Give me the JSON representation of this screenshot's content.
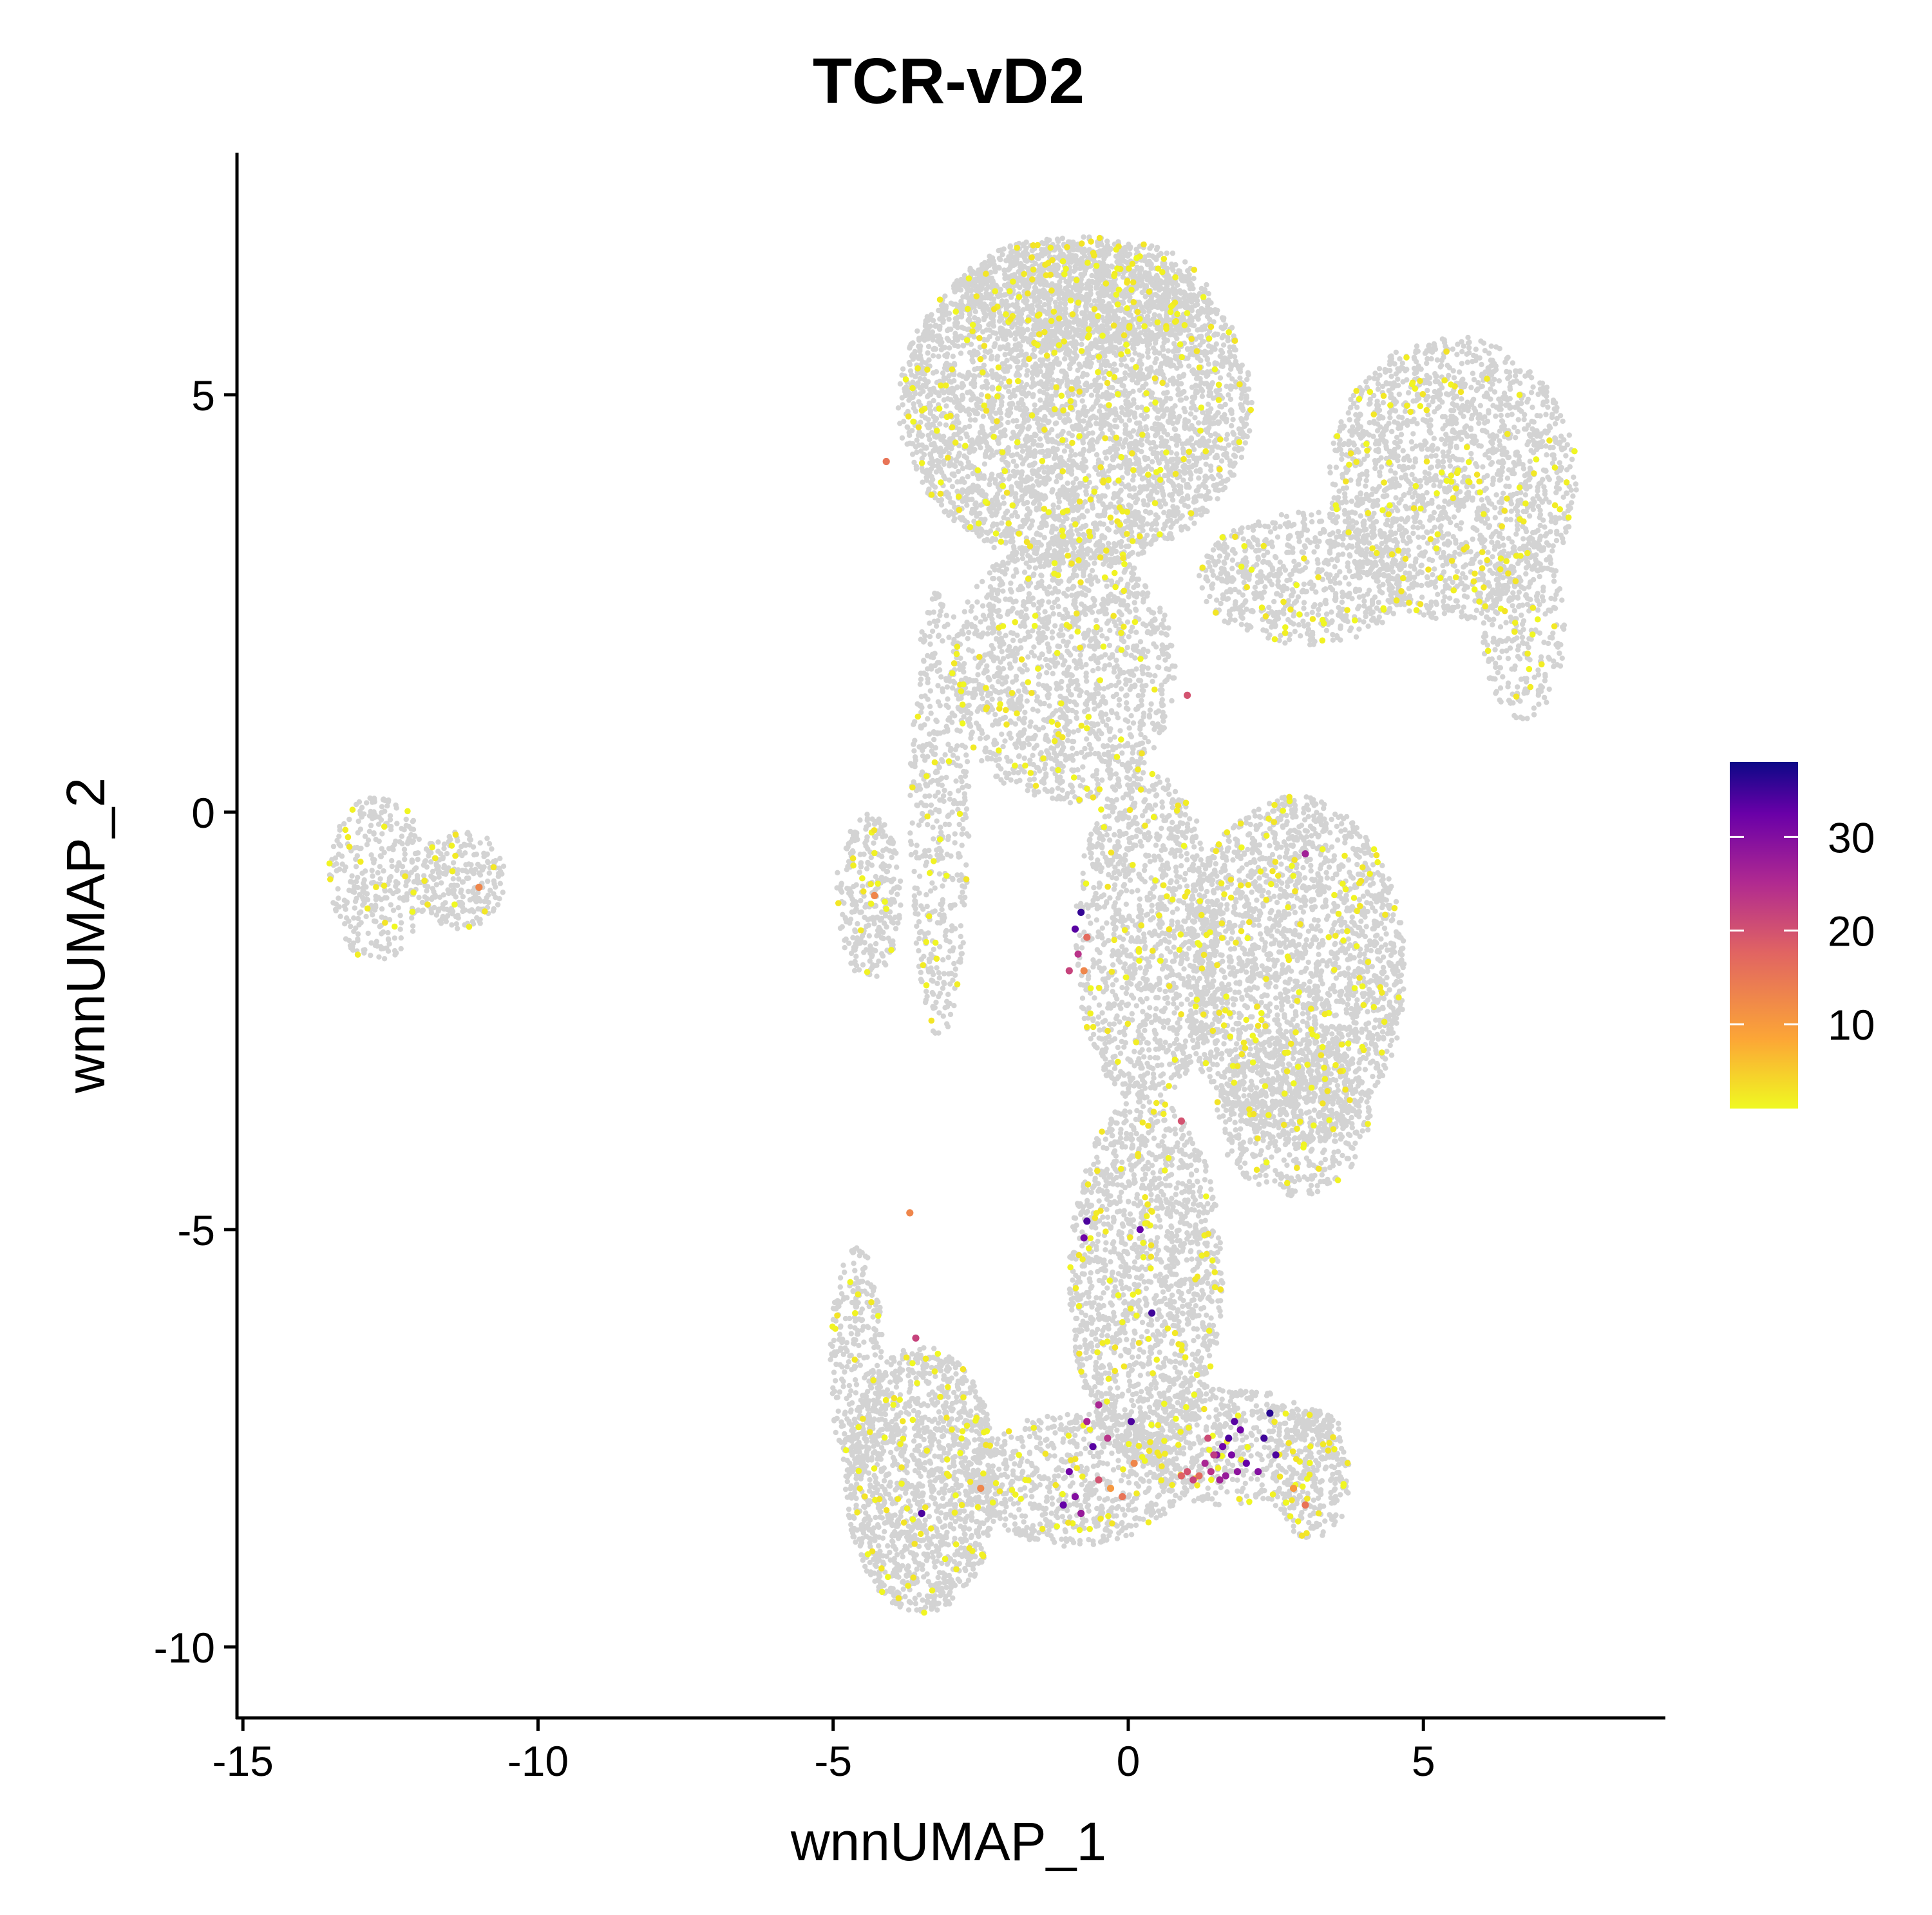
{
  "chart_data": {
    "type": "scatter",
    "title": "TCR-vD2",
    "xlabel": "wnnUMAP_1",
    "ylabel": "wnnUMAP_2",
    "xlim": [
      -15.1,
      9.1
    ],
    "ylim": [
      -10.85,
      7.9
    ],
    "x_ticks": [
      -15,
      -10,
      -5,
      0,
      5
    ],
    "x_tick_labels": [
      "-15",
      "-10",
      "-5",
      "0",
      "5"
    ],
    "y_ticks": [
      -10,
      -5,
      0,
      5
    ],
    "y_tick_labels": [
      "-10",
      "-5",
      "0",
      "5"
    ],
    "grid": false,
    "legend": {
      "position": "right",
      "type": "colorbar",
      "range": [
        1,
        38
      ],
      "ticks": [
        10,
        20,
        30
      ],
      "tick_labels": [
        "10",
        "20",
        "30"
      ],
      "colormap": [
        "#f0f921",
        "#fca636",
        "#e16462",
        "#b12a90",
        "#6a00a8",
        "#0d0887"
      ]
    },
    "background_color": "#d3d3d3",
    "clusters": [
      {
        "name": "top-blob",
        "cx": -0.9,
        "cy": 4.9,
        "rx": 3.0,
        "ry": 1.95,
        "n": 4200
      },
      {
        "name": "top-blob-upper",
        "cx": -0.8,
        "cy": 6.2,
        "rx": 2.2,
        "ry": 0.7,
        "n": 900
      },
      {
        "name": "stalk-upper",
        "cx": -1.1,
        "cy": 1.7,
        "rx": 1.9,
        "ry": 1.6,
        "n": 1500
      },
      {
        "name": "left-arm",
        "cx": -3.2,
        "cy": 0.0,
        "rx": 0.5,
        "ry": 2.7,
        "n": 500
      },
      {
        "name": "right-lobe-top",
        "cx": 5.5,
        "cy": 4.0,
        "rx": 2.1,
        "ry": 1.7,
        "n": 1800
      },
      {
        "name": "right-lobe-tail",
        "cx": 6.7,
        "cy": 2.2,
        "rx": 0.7,
        "ry": 1.1,
        "n": 300
      },
      {
        "name": "bridge",
        "cx": 3.0,
        "cy": 2.8,
        "rx": 1.8,
        "ry": 0.8,
        "n": 700
      },
      {
        "name": "right-mid",
        "cx": 2.8,
        "cy": -1.9,
        "rx": 1.9,
        "ry": 2.1,
        "n": 2400
      },
      {
        "name": "right-mid-lower",
        "cx": 2.8,
        "cy": -3.6,
        "rx": 1.3,
        "ry": 1.0,
        "n": 600
      },
      {
        "name": "mid-center",
        "cx": 0.3,
        "cy": -1.5,
        "rx": 1.2,
        "ry": 2.0,
        "n": 1200
      },
      {
        "name": "center-column",
        "cx": 0.3,
        "cy": -5.6,
        "rx": 1.3,
        "ry": 2.2,
        "n": 1600
      },
      {
        "name": "bottom-left",
        "cx": -3.5,
        "cy": -8.0,
        "rx": 1.3,
        "ry": 1.6,
        "n": 1500
      },
      {
        "name": "bottom-left-arm",
        "cx": -4.6,
        "cy": -6.6,
        "rx": 0.45,
        "ry": 1.4,
        "n": 300
      },
      {
        "name": "bottom-center",
        "cx": -0.9,
        "cy": -8.0,
        "rx": 1.8,
        "ry": 0.8,
        "n": 700
      },
      {
        "name": "bottom-right",
        "cx": 1.7,
        "cy": -7.6,
        "rx": 1.8,
        "ry": 0.7,
        "n": 600
      },
      {
        "name": "bottom-far-right",
        "cx": 3.1,
        "cy": -7.9,
        "rx": 0.7,
        "ry": 0.8,
        "n": 300
      },
      {
        "name": "left-small",
        "cx": -4.4,
        "cy": -1.0,
        "rx": 0.55,
        "ry": 1.0,
        "n": 300
      },
      {
        "name": "isolated-left",
        "cx": -12.7,
        "cy": -0.8,
        "rx": 0.85,
        "ry": 1.0,
        "n": 350
      },
      {
        "name": "isolated-right",
        "cx": -11.3,
        "cy": -0.8,
        "rx": 0.75,
        "ry": 0.6,
        "n": 250
      }
    ],
    "high_expression_points": [
      {
        "x": 1.0,
        "y": -7.9,
        "v": 18
      },
      {
        "x": 1.1,
        "y": -8.0,
        "v": 20
      },
      {
        "x": 1.2,
        "y": -7.95,
        "v": 15
      },
      {
        "x": 1.3,
        "y": -7.8,
        "v": 24
      },
      {
        "x": 1.4,
        "y": -7.9,
        "v": 22
      },
      {
        "x": 1.5,
        "y": -7.7,
        "v": 28
      },
      {
        "x": 1.6,
        "y": -7.6,
        "v": 30
      },
      {
        "x": 1.7,
        "y": -7.5,
        "v": 33
      },
      {
        "x": 1.8,
        "y": -7.3,
        "v": 32
      },
      {
        "x": 1.9,
        "y": -7.4,
        "v": 30
      },
      {
        "x": 1.75,
        "y": -7.7,
        "v": 29
      },
      {
        "x": 1.85,
        "y": -7.9,
        "v": 27
      },
      {
        "x": 2.0,
        "y": -7.8,
        "v": 31
      },
      {
        "x": 1.55,
        "y": -8.0,
        "v": 25
      },
      {
        "x": 1.65,
        "y": -7.95,
        "v": 26
      },
      {
        "x": 1.45,
        "y": -7.7,
        "v": 21
      },
      {
        "x": 0.9,
        "y": -7.95,
        "v": 16
      },
      {
        "x": 2.4,
        "y": -7.2,
        "v": 36
      },
      {
        "x": 2.3,
        "y": -7.5,
        "v": 34
      },
      {
        "x": 2.2,
        "y": -7.9,
        "v": 28
      },
      {
        "x": 1.35,
        "y": -7.5,
        "v": 19
      },
      {
        "x": -1.0,
        "y": -7.9,
        "v": 30
      },
      {
        "x": -0.9,
        "y": -8.2,
        "v": 28
      },
      {
        "x": -1.1,
        "y": -8.3,
        "v": 31
      },
      {
        "x": -0.8,
        "y": -8.4,
        "v": 26
      },
      {
        "x": -0.5,
        "y": -8.0,
        "v": 18
      },
      {
        "x": -0.3,
        "y": -8.1,
        "v": 10
      },
      {
        "x": -0.1,
        "y": -8.2,
        "v": 14
      },
      {
        "x": 0.1,
        "y": -7.8,
        "v": 12
      },
      {
        "x": -0.6,
        "y": -7.6,
        "v": 32
      },
      {
        "x": 0.05,
        "y": -7.3,
        "v": 33
      },
      {
        "x": -0.7,
        "y": -7.3,
        "v": 24
      },
      {
        "x": -0.35,
        "y": -7.5,
        "v": 22
      },
      {
        "x": -0.8,
        "y": -1.2,
        "v": 35
      },
      {
        "x": -0.9,
        "y": -1.4,
        "v": 32
      },
      {
        "x": -0.85,
        "y": -1.7,
        "v": 22
      },
      {
        "x": -0.7,
        "y": -1.5,
        "v": 15
      },
      {
        "x": -1.0,
        "y": -1.9,
        "v": 20
      },
      {
        "x": -0.75,
        "y": -1.9,
        "v": 12
      },
      {
        "x": -0.7,
        "y": -4.9,
        "v": 33
      },
      {
        "x": -0.75,
        "y": -5.1,
        "v": 30
      },
      {
        "x": 0.2,
        "y": -5.0,
        "v": 31
      },
      {
        "x": 0.4,
        "y": -6.0,
        "v": 34
      },
      {
        "x": -0.5,
        "y": -7.1,
        "v": 24
      },
      {
        "x": -3.5,
        "y": -8.4,
        "v": 33
      },
      {
        "x": -3.6,
        "y": -6.3,
        "v": 20
      },
      {
        "x": -3.7,
        "y": -4.8,
        "v": 12
      },
      {
        "x": -4.1,
        "y": 4.2,
        "v": 14
      },
      {
        "x": -4.3,
        "y": -1.0,
        "v": 12
      },
      {
        "x": -11.0,
        "y": -0.9,
        "v": 12
      },
      {
        "x": 1.0,
        "y": 1.4,
        "v": 18
      },
      {
        "x": 3.0,
        "y": -0.5,
        "v": 25
      },
      {
        "x": 2.5,
        "y": -7.7,
        "v": 33
      },
      {
        "x": 3.0,
        "y": -8.3,
        "v": 14
      },
      {
        "x": 0.9,
        "y": -3.7,
        "v": 18
      },
      {
        "x": -2.5,
        "y": -8.1,
        "v": 12
      },
      {
        "x": 2.8,
        "y": -8.1,
        "v": 10
      }
    ]
  }
}
